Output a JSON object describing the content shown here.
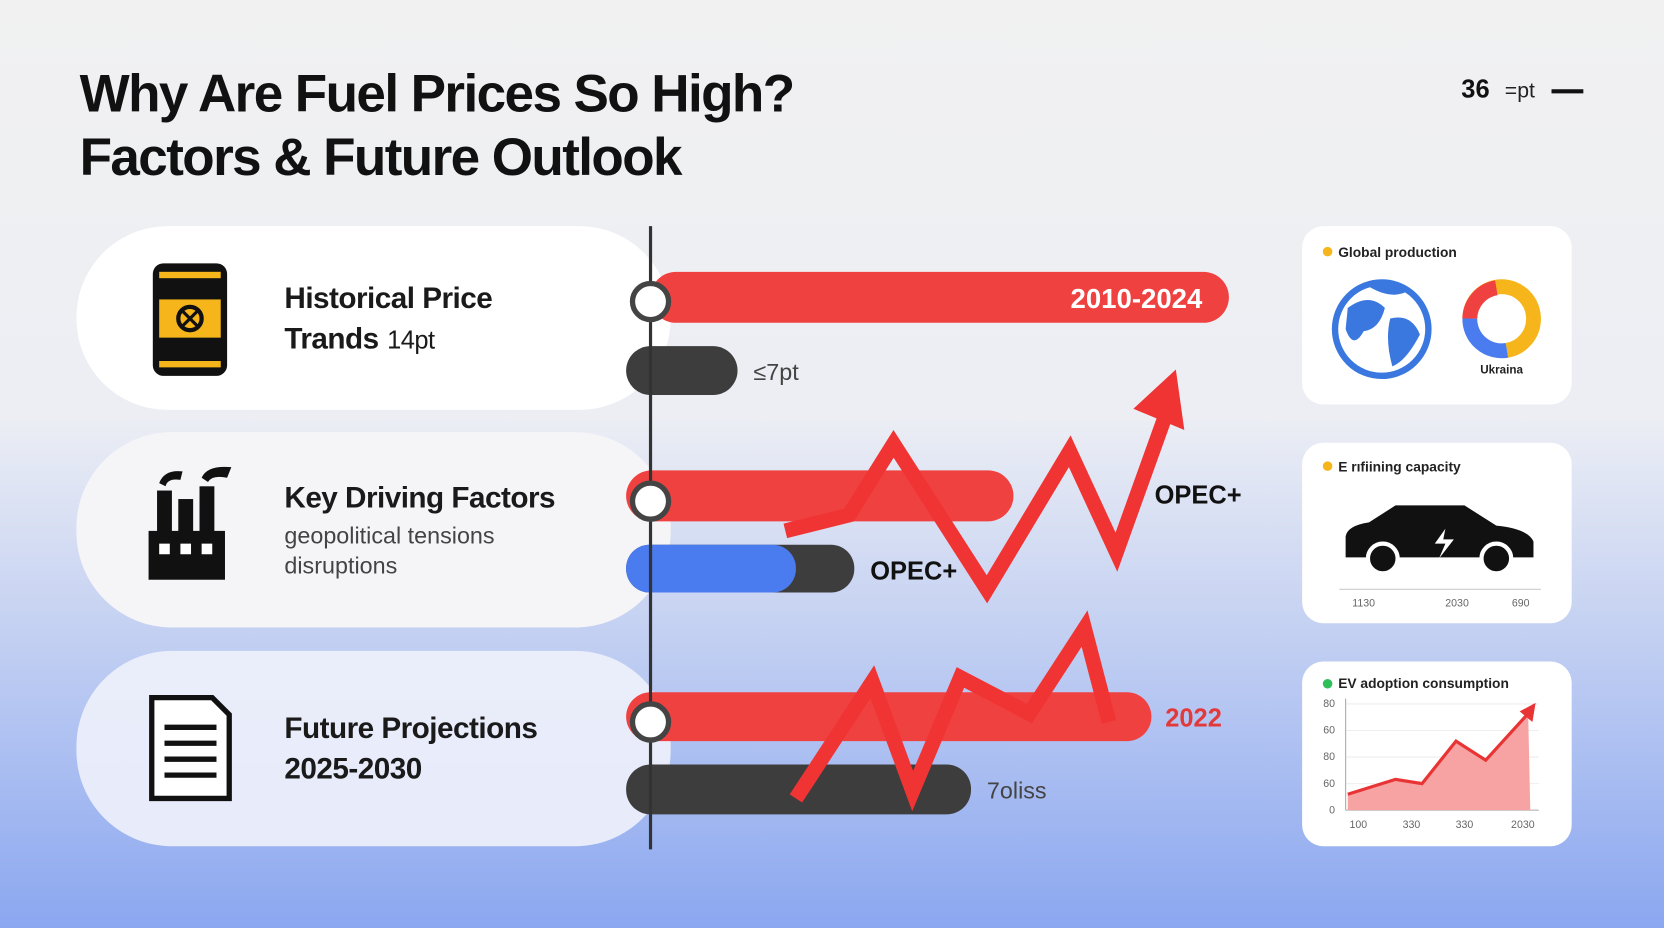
{
  "header": {
    "title_lines": [
      "Why Are Fuel Prices So High?",
      "Factors & Future Outlook"
    ],
    "page_number": "36",
    "page_unit": "=pt"
  },
  "rows": [
    {
      "title": "Historical Price",
      "title2": "Trands",
      "suffix": "14pt"
    },
    {
      "title": "Key Driving Factors",
      "lines": [
        "geopolitical tensions",
        "disruptions"
      ]
    },
    {
      "title": "Future Projections",
      "title2": "2025-2030"
    }
  ],
  "bar_labels": [
    "2010-2024",
    "≤7pt",
    "OPEC+",
    "OPEC+",
    "2022",
    "7oliss"
  ],
  "cards": [
    {
      "title": "Global production",
      "caption": "Ukraina"
    },
    {
      "title": "E rıfiining capacity",
      "x_labels": [
        "1130",
        "2030",
        "690"
      ]
    },
    {
      "title": "EV adoption consumption",
      "y_labels": [
        "80",
        "60",
        "80",
        "60",
        "0"
      ],
      "x_labels": [
        "100",
        "330",
        "330",
        "2030"
      ]
    }
  ]
}
